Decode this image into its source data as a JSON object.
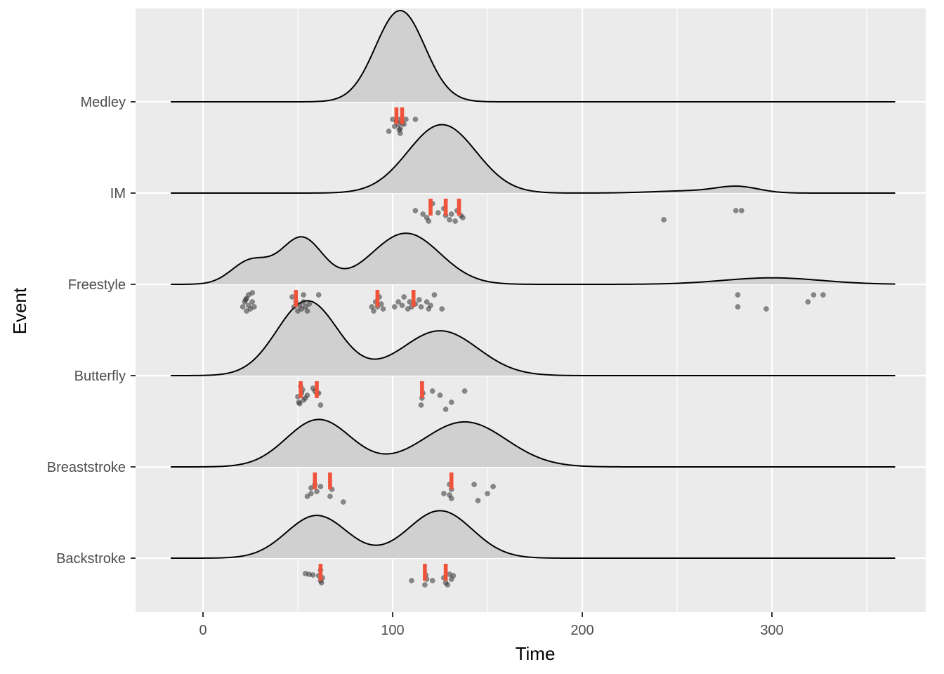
{
  "chart_data": {
    "type": "ridgeline",
    "title": "",
    "xlabel": "Time",
    "ylabel": "Event",
    "xlim": [
      -35,
      380
    ],
    "x_ticks": [
      0,
      100,
      200,
      300
    ],
    "x_minor_ticks": [
      50,
      150,
      250,
      350
    ],
    "density_range": [
      -17,
      365
    ],
    "categories": [
      "Backstroke",
      "Breaststroke",
      "Butterfly",
      "Freestyle",
      "IM",
      "Medley"
    ],
    "grid": true,
    "legend": "none",
    "colors": {
      "panel": "#ebebeb",
      "grid": "#ffffff",
      "density_fill": "#d0d0d0",
      "density_line": "#000000",
      "point": "#333333",
      "marker": "#f0523a"
    },
    "series": [
      {
        "name": "Backstroke",
        "density": [
          {
            "mu": 60,
            "sd": 16,
            "w": 0.9
          },
          {
            "mu": 125,
            "sd": 17,
            "w": 1.0
          }
        ],
        "height": 0.52,
        "points": [
          [
            54,
            0.02
          ],
          [
            56,
            0.03
          ],
          [
            58,
            0.04
          ],
          [
            61,
            0.05
          ],
          [
            62,
            0.12
          ],
          [
            62,
            -0.03
          ],
          [
            63,
            0.08
          ],
          [
            62.5,
            0.15
          ],
          [
            110,
            0.12
          ],
          [
            117,
            0.18
          ],
          [
            118,
            0.1
          ],
          [
            117.5,
            0.04
          ],
          [
            121,
            0.12
          ],
          [
            128,
            0.15
          ],
          [
            127,
            0.08
          ],
          [
            130,
            0.03
          ],
          [
            131,
            0.1
          ],
          [
            132,
            0.05
          ],
          [
            129,
            0.18
          ]
        ],
        "markers": [
          62,
          117,
          128
        ]
      },
      {
        "name": "Breaststroke",
        "density": [
          {
            "mu": 61,
            "sd": 17,
            "w": 1.0
          },
          {
            "mu": 138,
            "sd": 22,
            "w": 0.95
          }
        ],
        "height": 0.52,
        "points": [
          [
            55,
            0.22
          ],
          [
            57,
            0.18
          ],
          [
            57,
            0.1
          ],
          [
            59,
            0.05
          ],
          [
            60,
            0.15
          ],
          [
            62,
            0.08
          ],
          [
            67,
            0.22
          ],
          [
            68,
            0.12
          ],
          [
            74,
            0.3
          ],
          [
            127,
            0.18
          ],
          [
            130,
            0.2
          ],
          [
            130,
            0.05
          ],
          [
            131,
            0.12
          ],
          [
            145,
            0.28
          ],
          [
            143,
            0.05
          ],
          [
            150,
            0.18
          ],
          [
            153,
            0.08
          ],
          [
            131,
            0.25
          ]
        ],
        "markers": [
          59,
          67,
          131
        ]
      },
      {
        "name": "Butterfly",
        "density": [
          {
            "mu": 55,
            "sd": 16,
            "w": 1.0
          },
          {
            "mu": 125,
            "sd": 20,
            "w": 0.6
          }
        ],
        "height": 0.82,
        "points": [
          [
            50,
            0.1
          ],
          [
            51,
            0.2
          ],
          [
            52,
            0.05
          ],
          [
            53,
            0.15
          ],
          [
            52.5,
            0.0
          ],
          [
            54,
            0.12
          ],
          [
            55,
            0.08
          ],
          [
            50.5,
            0.18
          ],
          [
            51.5,
            -0.05
          ],
          [
            59,
            0.02
          ],
          [
            60,
            0.05
          ],
          [
            58,
            -0.02
          ],
          [
            62,
            0.22
          ],
          [
            61,
            0.05
          ],
          [
            115,
            0.22
          ],
          [
            116,
            0.05
          ],
          [
            115.5,
            0.12
          ],
          [
            121,
            0.02
          ],
          [
            125,
            0.08
          ],
          [
            128,
            0.28
          ],
          [
            131,
            0.18
          ],
          [
            138,
            0.02
          ]
        ],
        "markers": [
          51.5,
          60,
          115.5
        ]
      },
      {
        "name": "Freestyle",
        "density": [
          {
            "mu": 25,
            "sd": 10,
            "w": 0.5
          },
          {
            "mu": 52,
            "sd": 11,
            "w": 1.0
          },
          {
            "mu": 107,
            "sd": 18,
            "w": 1.1
          },
          {
            "mu": 300,
            "sd": 26,
            "w": 0.14
          }
        ],
        "height": 0.56,
        "points": [
          [
            21,
            0.12
          ],
          [
            22,
            0.05
          ],
          [
            23,
            0.18
          ],
          [
            23,
            0.0
          ],
          [
            24,
            0.1
          ],
          [
            25,
            0.15
          ],
          [
            26,
            0.05
          ],
          [
            27,
            0.12
          ],
          [
            24,
            -0.05
          ],
          [
            22.5,
            0.02
          ],
          [
            26,
            -0.08
          ],
          [
            48,
            0.12
          ],
          [
            49,
            0.05
          ],
          [
            50,
            0.18
          ],
          [
            47,
            -0.02
          ],
          [
            51,
            0.1
          ],
          [
            52,
            0.15
          ],
          [
            53,
            0.05
          ],
          [
            54,
            0.12
          ],
          [
            55,
            0.18
          ],
          [
            56,
            0.08
          ],
          [
            53,
            -0.05
          ],
          [
            61,
            -0.05
          ],
          [
            89,
            0.12
          ],
          [
            90,
            0.18
          ],
          [
            91,
            0.05
          ],
          [
            92,
            0.12
          ],
          [
            93,
            -0.02
          ],
          [
            94,
            0.08
          ],
          [
            95,
            0.15
          ],
          [
            101,
            0.12
          ],
          [
            103,
            0.05
          ],
          [
            105,
            0.1
          ],
          [
            106,
            -0.02
          ],
          [
            108,
            0.15
          ],
          [
            109,
            0.05
          ],
          [
            110,
            0.12
          ],
          [
            112,
            0.08
          ],
          [
            114,
            0.02
          ],
          [
            115,
            0.12
          ],
          [
            118,
            0.05
          ],
          [
            119,
            0.15
          ],
          [
            120,
            0.1
          ],
          [
            122,
            -0.05
          ],
          [
            126,
            0.15
          ],
          [
            282,
            0.12
          ],
          [
            282,
            -0.05
          ],
          [
            297,
            0.15
          ],
          [
            319,
            0.05
          ],
          [
            322,
            -0.05
          ],
          [
            327,
            -0.05
          ]
        ],
        "markers": [
          49,
          92,
          111
        ]
      },
      {
        "name": "IM",
        "density": [
          {
            "mu": 126,
            "sd": 18,
            "w": 1.0
          },
          {
            "mu": 258,
            "sd": 20,
            "w": 0.033
          },
          {
            "mu": 282,
            "sd": 11,
            "w": 0.085
          }
        ],
        "height": 0.75,
        "points": [
          [
            112,
            0.05
          ],
          [
            116,
            0.1
          ],
          [
            118,
            0.15
          ],
          [
            119,
            0.2
          ],
          [
            121,
            -0.05
          ],
          [
            124,
            0.08
          ],
          [
            127,
            0.02
          ],
          [
            128,
            0.12
          ],
          [
            130,
            0.18
          ],
          [
            131,
            0.1
          ],
          [
            134,
            0.05
          ],
          [
            136,
            0.12
          ],
          [
            137,
            0.15
          ],
          [
            133,
            0.2
          ],
          [
            243,
            0.18
          ],
          [
            281,
            0.05
          ],
          [
            284,
            0.05
          ]
        ],
        "markers": [
          120,
          128,
          135
        ]
      },
      {
        "name": "Medley",
        "density": [
          {
            "mu": 104,
            "sd": 13,
            "w": 1.0
          }
        ],
        "height": 1.0,
        "points": [
          [
            100,
            0.05
          ],
          [
            101,
            0.15
          ],
          [
            102,
            0.08
          ],
          [
            103,
            0.12
          ],
          [
            104,
            0.18
          ],
          [
            104,
            0.05
          ],
          [
            105,
            0.1
          ],
          [
            106,
            0.12
          ],
          [
            103.5,
            0.2
          ],
          [
            107,
            0.05
          ],
          [
            98,
            0.22
          ],
          [
            104,
            0.25
          ],
          [
            112,
            0.05
          ]
        ],
        "markers": [
          102,
          105
        ]
      }
    ]
  }
}
